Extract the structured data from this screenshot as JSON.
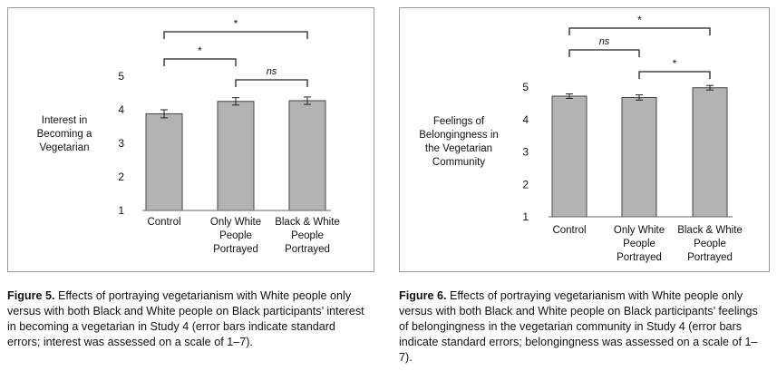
{
  "figure5": {
    "caption_label": "Figure 5.",
    "caption_text": "Effects of portraying vegetarianism with White people only versus with both Black and White people on Black participants’ interest in becoming a vegetarian in Study 4 (error bars indicate standard errors; interest was assessed on a scale of 1–7)."
  },
  "figure6": {
    "caption_label": "Figure 6.",
    "caption_text": "Effects of portraying vegetarianism with White people only versus with both Black and White people on Black participants’ feelings of belongingness in the vegetarian community in Study 4 (error bars indicate standard errors; belongingness was assessed on a scale of 1–7)."
  },
  "chart_data": [
    {
      "type": "bar",
      "ylabel": "Interest in Becoming a Vegetarian",
      "ylim": [
        1,
        5
      ],
      "yticks": [
        1,
        2,
        3,
        4,
        5
      ],
      "categories": [
        [
          "Control"
        ],
        [
          "Only White",
          "People",
          "Portrayed"
        ],
        [
          "Black & White",
          "People",
          "Portrayed"
        ]
      ],
      "values": [
        3.88,
        4.25,
        4.27
      ],
      "errors": [
        0.12,
        0.11,
        0.11
      ],
      "bar_color": "#b3b3b3",
      "grid": false,
      "significance": [
        {
          "from": 0,
          "to": 1,
          "label": "*"
        },
        {
          "from": 0,
          "to": 2,
          "label": "*"
        },
        {
          "from": 1,
          "to": 2,
          "label": "ns"
        }
      ]
    },
    {
      "type": "bar",
      "ylabel": "Feelings of Belongingness in the Vegetarian Community",
      "ylim": [
        1,
        5
      ],
      "yticks": [
        1,
        2,
        3,
        4,
        5
      ],
      "categories": [
        [
          "Control"
        ],
        [
          "Only White",
          "People",
          "Portrayed"
        ],
        [
          "Black & White",
          "People",
          "Portrayed"
        ]
      ],
      "values": [
        4.72,
        4.68,
        4.98
      ],
      "errors": [
        0.07,
        0.08,
        0.07
      ],
      "bar_color": "#b3b3b3",
      "grid": false,
      "significance": [
        {
          "from": 0,
          "to": 1,
          "label": "ns"
        },
        {
          "from": 0,
          "to": 2,
          "label": "*"
        },
        {
          "from": 1,
          "to": 2,
          "label": "*"
        }
      ]
    }
  ]
}
